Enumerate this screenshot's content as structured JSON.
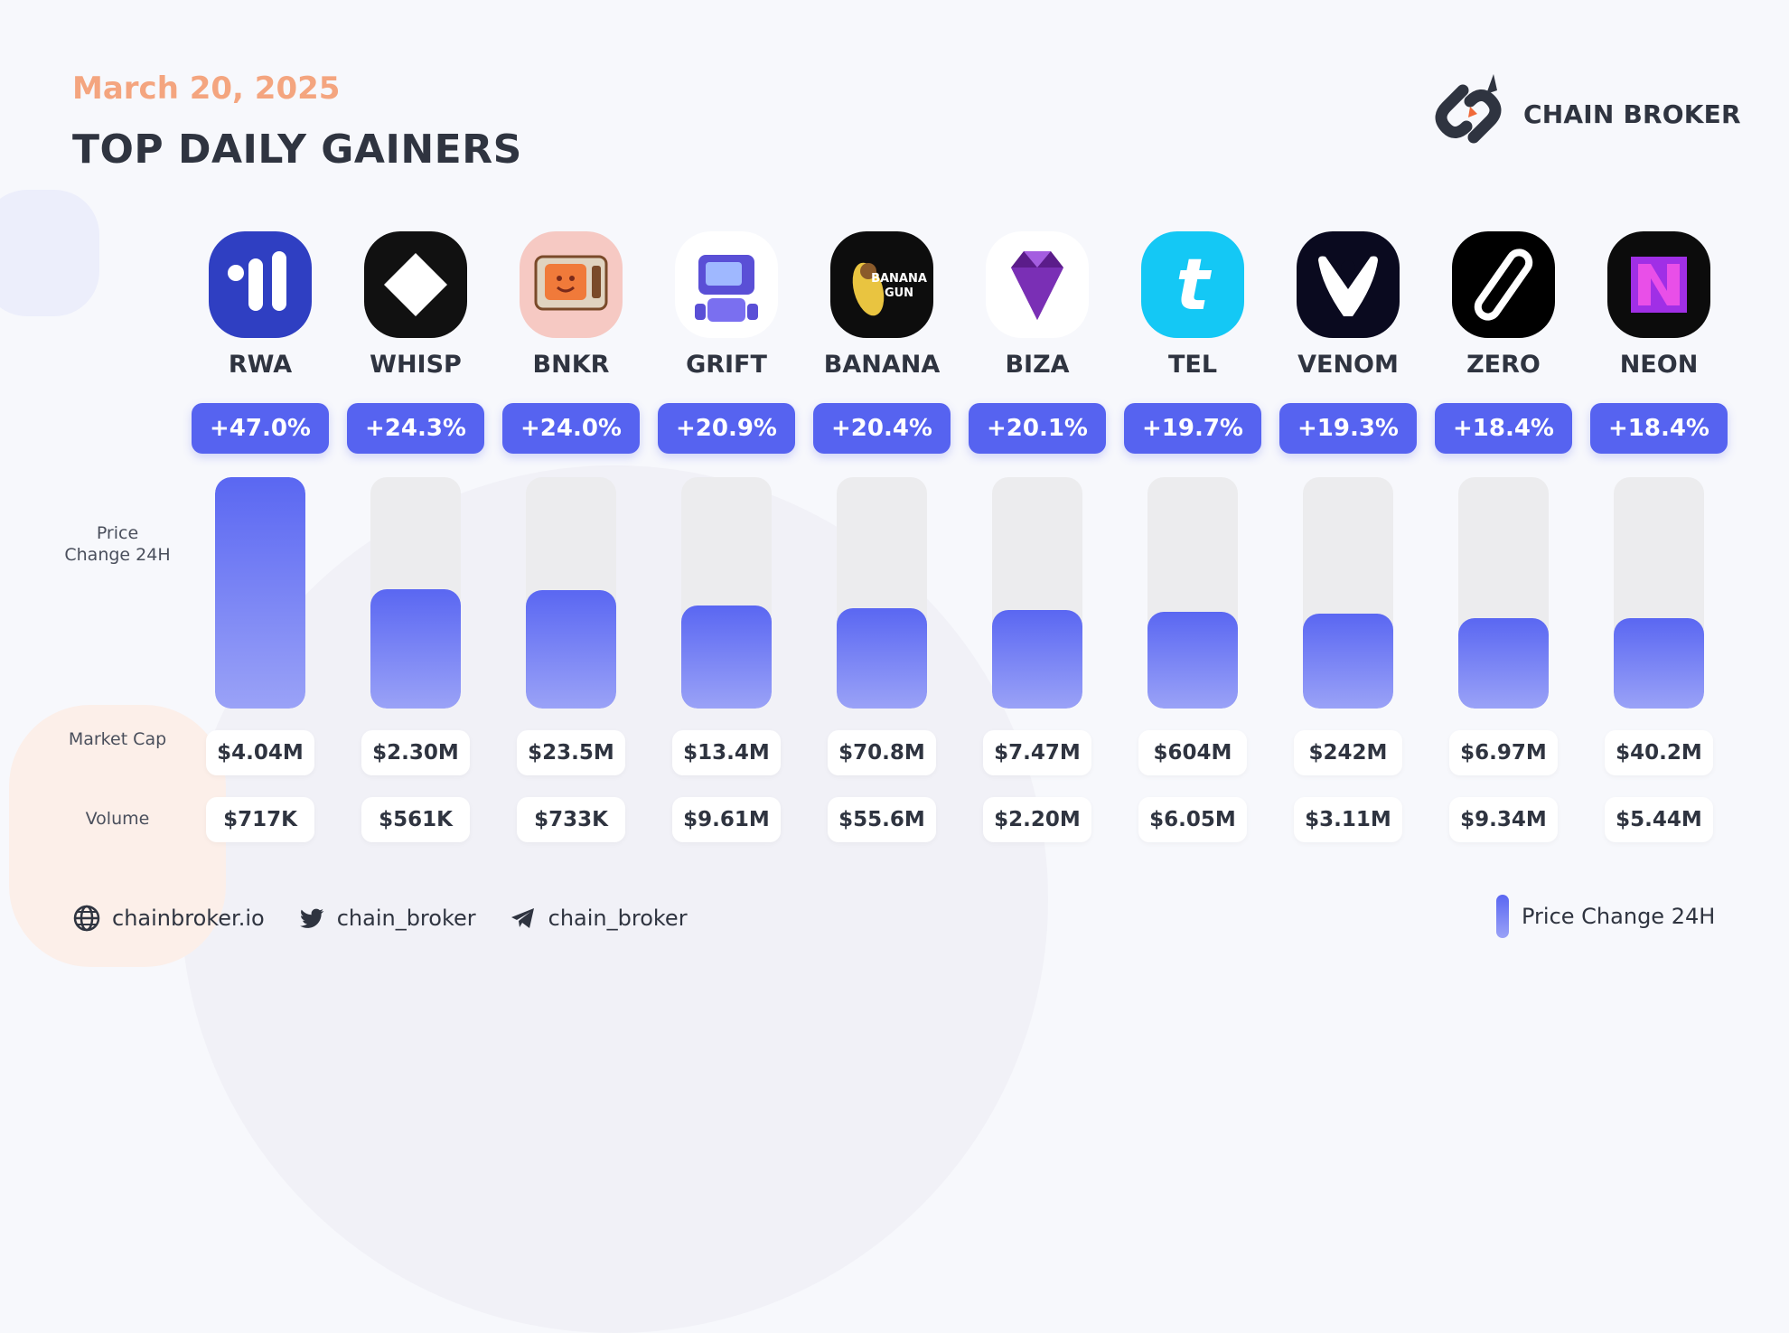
{
  "header": {
    "date": "March 20, 2025",
    "title": "TOP DAILY GAINERS",
    "brand": "CHAIN BROKER"
  },
  "row_labels": {
    "price_change": "Price Change 24H",
    "market_cap": "Market Cap",
    "volume": "Volume"
  },
  "tokens": [
    {
      "ticker": "RWA",
      "pct": "+47.0%",
      "market_cap": "$4.04M",
      "volume": "$717K",
      "icon": "rwa-icon",
      "color": "#2f3fc2"
    },
    {
      "ticker": "WHISP",
      "pct": "+24.3%",
      "market_cap": "$2.30M",
      "volume": "$561K",
      "icon": "whisp-icon",
      "color": "#111111"
    },
    {
      "ticker": "BNKR",
      "pct": "+24.0%",
      "market_cap": "$23.5M",
      "volume": "$733K",
      "icon": "bnkr-icon",
      "color": "#f6c9c3"
    },
    {
      "ticker": "GRIFT",
      "pct": "+20.9%",
      "market_cap": "$13.4M",
      "volume": "$9.61M",
      "icon": "grift-icon",
      "color": "#ffffff"
    },
    {
      "ticker": "BANANA",
      "pct": "+20.4%",
      "market_cap": "$70.8M",
      "volume": "$55.6M",
      "icon": "banana-icon",
      "color": "#0d0d0d"
    },
    {
      "ticker": "BIZA",
      "pct": "+20.1%",
      "market_cap": "$7.47M",
      "volume": "$2.20M",
      "icon": "biza-icon",
      "color": "#ffffff"
    },
    {
      "ticker": "TEL",
      "pct": "+19.7%",
      "market_cap": "$604M",
      "volume": "$6.05M",
      "icon": "tel-icon",
      "color": "#14c8f5"
    },
    {
      "ticker": "VENOM",
      "pct": "+19.3%",
      "market_cap": "$242M",
      "volume": "$3.11M",
      "icon": "venom-icon",
      "color": "#0a0a1f"
    },
    {
      "ticker": "ZERO",
      "pct": "+18.4%",
      "market_cap": "$6.97M",
      "volume": "$9.34M",
      "icon": "zero-icon",
      "color": "#000000"
    },
    {
      "ticker": "NEON",
      "pct": "+18.4%",
      "market_cap": "$40.2M",
      "volume": "$5.44M",
      "icon": "neon-icon",
      "color": "#0c0c0c"
    }
  ],
  "chart_data": {
    "type": "bar",
    "categories": [
      "RWA",
      "WHISP",
      "BNKR",
      "GRIFT",
      "BANANA",
      "BIZA",
      "TEL",
      "VENOM",
      "ZERO",
      "NEON"
    ],
    "values": [
      47.0,
      24.3,
      24.0,
      20.9,
      20.4,
      20.1,
      19.7,
      19.3,
      18.4,
      18.4
    ],
    "ylim": [
      0,
      47.0
    ],
    "title": "TOP DAILY GAINERS",
    "xlabel": "",
    "ylabel": "Price Change 24H",
    "legend": "bottom-right",
    "grid": false,
    "bar_color": "#5a67f2"
  },
  "footer": {
    "website": "chainbroker.io",
    "twitter": "chain_broker",
    "telegram": "chain_broker",
    "legend_label": "Price Change 24H"
  },
  "colors": {
    "accent": "#5663f0",
    "date": "#f4a57f",
    "text": "#2f3440"
  }
}
